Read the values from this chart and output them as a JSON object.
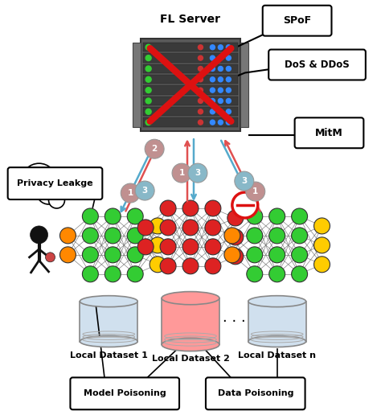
{
  "bg_color": "#ffffff",
  "server_label": "FL Server",
  "labels": {
    "spof": "SPoF",
    "dos": "DoS & DDoS",
    "mitm": "MitM",
    "privacy": "Privacy Leakge",
    "model_poison": "Model Poisoning",
    "data_poison": "Data Poisoning",
    "dataset1": "Local Dataset 1",
    "dataset2": "Local Dataset 2",
    "datasetn": "Local Dataset n"
  },
  "nn_normal_colors": {
    "input": [
      "#ff8800",
      "#ff8800"
    ],
    "hidden1": [
      "#33cc33",
      "#33cc33",
      "#33cc33",
      "#33cc33"
    ],
    "hidden2": [
      "#33cc33",
      "#33cc33",
      "#33cc33",
      "#33cc33"
    ],
    "hidden3": [
      "#33cc33",
      "#33cc33",
      "#33cc33",
      "#33cc33"
    ],
    "output": [
      "#ffcc00",
      "#ffcc00",
      "#ffcc00"
    ]
  },
  "nn_poison_colors": {
    "input": [
      "#dd2222",
      "#dd2222"
    ],
    "hidden1": [
      "#dd2222",
      "#dd2222",
      "#dd2222",
      "#dd2222"
    ],
    "hidden2": [
      "#dd2222",
      "#dd2222",
      "#dd2222",
      "#dd2222"
    ],
    "hidden3": [
      "#dd2222",
      "#dd2222",
      "#dd2222",
      "#dd2222"
    ],
    "output": [
      "#dd2222",
      "#dd2222",
      "#dd2222"
    ]
  },
  "arrow_red": "#e05050",
  "arrow_blue": "#55aacc",
  "num_color_1": "#c09090",
  "num_color_3": "#88b8c8",
  "num_color_2": "#c09090"
}
